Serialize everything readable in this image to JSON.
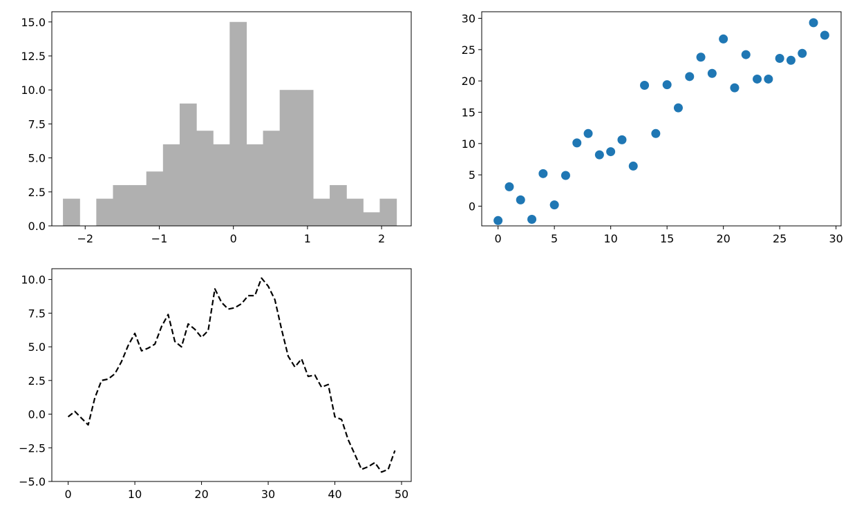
{
  "chart_data": [
    {
      "type": "bar",
      "subtype": "histogram",
      "bar_color": "#b0b0b0",
      "xlim": [
        -2.45,
        2.4
      ],
      "ylim": [
        0,
        15.75
      ],
      "x_ticks": [
        -2,
        -1,
        0,
        1,
        2
      ],
      "x_tick_labels": [
        "−2",
        "−1",
        "0",
        "1",
        "2"
      ],
      "y_ticks": [
        0,
        2.5,
        5,
        7.5,
        10,
        12.5,
        15
      ],
      "y_tick_labels": [
        "0.0",
        "2.5",
        "5.0",
        "7.5",
        "10.0",
        "12.5",
        "15.0"
      ],
      "bin_edges": [
        -2.3,
        -2.075,
        -1.85,
        -1.625,
        -1.4,
        -1.175,
        -0.95,
        -0.725,
        -0.5,
        -0.275,
        -0.05,
        0.175,
        0.4,
        0.625,
        0.85,
        1.075,
        1.3,
        1.525,
        1.75,
        1.975,
        2.2
      ],
      "counts": [
        2,
        0,
        2,
        3,
        3,
        4,
        6,
        9,
        7,
        6,
        15,
        6,
        7,
        10,
        10,
        2,
        3,
        2,
        1,
        2
      ],
      "grid": false
    },
    {
      "type": "scatter",
      "marker_color": "#1f77b4",
      "xlim": [
        -1.45,
        30.45
      ],
      "ylim": [
        -3.15,
        31.05
      ],
      "x_ticks": [
        0,
        5,
        10,
        15,
        20,
        25,
        30
      ],
      "x_tick_labels": [
        "0",
        "5",
        "10",
        "15",
        "20",
        "25",
        "30"
      ],
      "y_ticks": [
        0,
        5,
        10,
        15,
        20,
        25,
        30
      ],
      "y_tick_labels": [
        "0",
        "5",
        "10",
        "15",
        "20",
        "25",
        "30"
      ],
      "x": [
        0,
        1,
        2,
        3,
        4,
        5,
        6,
        7,
        8,
        9,
        10,
        11,
        12,
        13,
        14,
        15,
        16,
        17,
        18,
        19,
        20,
        21,
        22,
        23,
        24,
        25,
        26,
        27,
        28,
        29
      ],
      "y": [
        -2.3,
        3.1,
        1.0,
        -2.1,
        5.2,
        0.2,
        4.9,
        10.1,
        11.6,
        8.2,
        8.7,
        10.6,
        6.4,
        19.3,
        11.6,
        19.4,
        15.7,
        20.7,
        23.8,
        21.2,
        26.7,
        18.9,
        24.2,
        20.3,
        20.3,
        23.6,
        23.3,
        24.4,
        29.3,
        27.3
      ],
      "grid": false
    },
    {
      "type": "line",
      "line_color": "#000000",
      "line_style": "dashed",
      "xlim": [
        -2.45,
        51.45
      ],
      "ylim": [
        -5.0,
        10.8
      ],
      "x_ticks": [
        0,
        10,
        20,
        30,
        40,
        50
      ],
      "x_tick_labels": [
        "0",
        "10",
        "20",
        "30",
        "40",
        "50"
      ],
      "y_ticks": [
        -5,
        -2.5,
        0,
        2.5,
        5,
        7.5,
        10
      ],
      "y_tick_labels": [
        "−5.0",
        "−2.5",
        "0.0",
        "2.5",
        "5.0",
        "7.5",
        "10.0"
      ],
      "x": [
        0,
        1,
        2,
        3,
        4,
        5,
        6,
        7,
        8,
        9,
        10,
        11,
        12,
        13,
        14,
        15,
        16,
        17,
        18,
        19,
        20,
        21,
        22,
        23,
        24,
        25,
        26,
        27,
        28,
        29,
        30,
        31,
        32,
        33,
        34,
        35,
        36,
        37,
        38,
        39,
        40,
        41,
        42,
        43,
        44,
        45,
        46,
        47,
        48,
        49
      ],
      "y": [
        -0.2,
        0.2,
        -0.3,
        -0.8,
        1.2,
        2.5,
        2.6,
        3.0,
        3.9,
        5.1,
        6.0,
        4.7,
        4.9,
        5.2,
        6.5,
        7.4,
        5.4,
        5.0,
        6.7,
        6.3,
        5.7,
        6.2,
        9.3,
        8.3,
        7.8,
        7.9,
        8.2,
        8.8,
        8.8,
        10.1,
        9.5,
        8.5,
        6.3,
        4.3,
        3.5,
        4.1,
        2.8,
        2.9,
        2.0,
        2.2,
        -0.2,
        -0.4,
        -1.9,
        -3.0,
        -4.1,
        -3.9,
        -3.6,
        -4.3,
        -4.1,
        -2.7
      ],
      "grid": false
    }
  ]
}
